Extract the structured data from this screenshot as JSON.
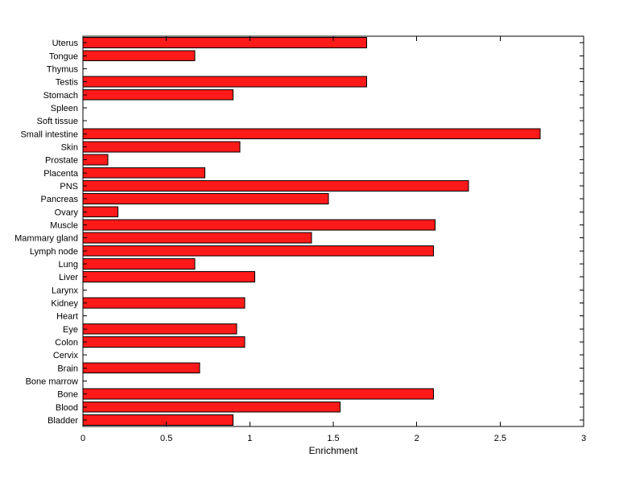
{
  "figure": {
    "background": "#ffffff"
  },
  "chart_data": {
    "type": "bar",
    "orientation": "horizontal",
    "title": "",
    "xlabel": "Enrichment",
    "ylabel": "",
    "xlim": [
      0,
      3
    ],
    "xticks": [
      0,
      0.5,
      1,
      1.5,
      2,
      2.5,
      3
    ],
    "xtick_labels": [
      "0",
      "0.5",
      "1",
      "1.5",
      "2",
      "2.5",
      "3"
    ],
    "grid": false,
    "categories": [
      "Uterus",
      "Tongue",
      "Thymus",
      "Testis",
      "Stomach",
      "Spleen",
      "Soft tissue",
      "Small intestine",
      "Skin",
      "Prostate",
      "Placenta",
      "PNS",
      "Pancreas",
      "Ovary",
      "Muscle",
      "Mammary gland",
      "Lymph node",
      "Lung",
      "Liver",
      "Larynx",
      "Kidney",
      "Heart",
      "Eye",
      "Colon",
      "Cervix",
      "Brain",
      "Bone marrow",
      "Bone",
      "Blood",
      "Bladder"
    ],
    "values": [
      1.7,
      0.67,
      0,
      1.7,
      0.9,
      0,
      0,
      2.74,
      0.94,
      0.15,
      0.73,
      2.31,
      1.47,
      0.21,
      2.11,
      1.37,
      2.1,
      0.67,
      1.03,
      0,
      0.97,
      0,
      0.92,
      0.97,
      0,
      0.7,
      0,
      2.1,
      1.54,
      0.9
    ],
    "bar_color": "#ff1a1a",
    "bar_edge_color": "#000000",
    "axis_color": "#000000",
    "text_color": "#000000"
  }
}
